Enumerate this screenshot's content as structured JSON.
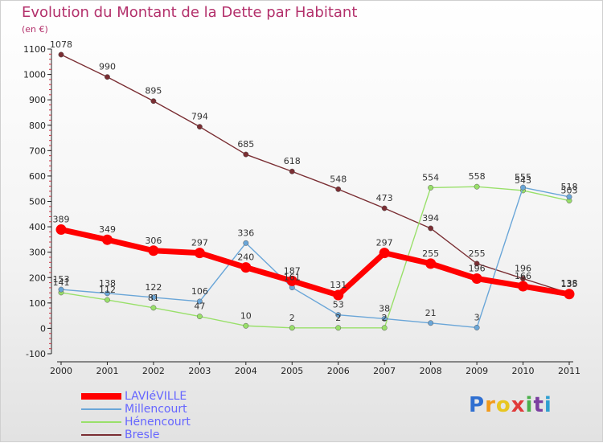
{
  "header": {
    "title": "Evolution du Montant de la Dette par Habitant",
    "subtitle": "(en €)"
  },
  "logo": {
    "text": "Proxiti",
    "letters": [
      "P",
      "r",
      "o",
      "x",
      "i",
      "t",
      "i"
    ],
    "colors": [
      "#2f6fd1",
      "#f29a1a",
      "#e8c620",
      "#e03a3a",
      "#4ab04a",
      "#7a3fa0",
      "#2f9fd1"
    ]
  },
  "chart_data": {
    "type": "line",
    "title": "Evolution du Montant de la Dette par Habitant",
    "ylabel": "(en €)",
    "xlabel": "",
    "x": [
      2000,
      2001,
      2002,
      2003,
      2004,
      2005,
      2006,
      2007,
      2008,
      2009,
      2010,
      2011
    ],
    "ylim": [
      -100,
      1100
    ],
    "yticks": [
      -100,
      0,
      100,
      200,
      300,
      400,
      500,
      600,
      700,
      800,
      900,
      1000,
      1100
    ],
    "grid": false,
    "legend_position": "bottom-left",
    "series": [
      {
        "name": "LAVIéVILLE",
        "color": "#ff0000",
        "values": [
          389,
          349,
          306,
          297,
          240,
          187,
          131,
          297,
          255,
          196,
          166,
          135
        ]
      },
      {
        "name": "Millencourt",
        "color": "#6aa6d8",
        "values": [
          153,
          138,
          122,
          106,
          336,
          161,
          53,
          38,
          21,
          3,
          555,
          518
        ]
      },
      {
        "name": "Hénencourt",
        "color": "#99e06a",
        "values": [
          141,
          112,
          81,
          47,
          10,
          2,
          2,
          2,
          554,
          558,
          543,
          503
        ]
      },
      {
        "name": "Bresle",
        "color": "#7a2e33",
        "values": [
          1078,
          990,
          895,
          794,
          685,
          618,
          548,
          473,
          394,
          255,
          196,
          138
        ]
      }
    ]
  }
}
